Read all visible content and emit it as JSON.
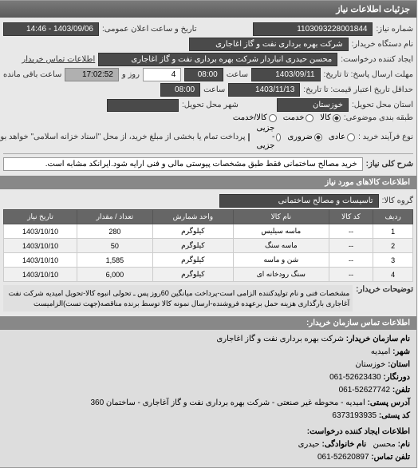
{
  "header": {
    "title": "جزئیات اطلاعات نیاز"
  },
  "info": {
    "request_no_label": "شماره نیاز:",
    "request_no": "1103093228001844",
    "announce_label": "تاریخ و ساعت اعلان عمومی:",
    "announce_value": "1403/09/06 - 14:46",
    "buyer_org_label": "نام دستگاه خریدار:",
    "buyer_org": "شرکت بهره برداری نفت و گاز اغاجاری",
    "creator_label": "ایجاد کننده درخواست:",
    "creator": "محسن حیدری انباردار شرکت بهره برداری نفت و گاز اغاجاری",
    "buyer_contact_label": "اطلاعات تماس خریدار",
    "deadline_label": "مهلت ارسال پاسخ: تا تاریخ:",
    "deadline_date": "1403/09/11",
    "time_label": "ساعت",
    "deadline_time": "08:00",
    "days_label": "روز و",
    "days_value": "4",
    "remaining_label": "ساعت باقی مانده",
    "remaining_time": "17:02:52",
    "validity_label": "حداقل تاریخ اعتبار قیمت: تا تاریخ:",
    "validity_date": "1403/11/13",
    "validity_time": "08:00",
    "delivery_province_label": "استان محل تحویل:",
    "delivery_province": "خوزستان",
    "delivery_city_label": "شهر محل تحویل:",
    "packaging_label": "طبقه بندی موضوعی:",
    "pkg_opt1": "کالا",
    "pkg_opt2": "خدمت",
    "pkg_opt3": "کالا/خدمت",
    "process_label": "نوع فرآیند خرید :",
    "proc_opt1": "عادی",
    "proc_opt2": "ضروری",
    "proc_opt3": "جزیی - جزیی",
    "payment_note": "پرداخت تمام یا بخشی از مبلغ خرید، از محل \"اسناد خزانه اسلامی\" خواهد بود.",
    "need_desc_label": "شرح کلی نیاز:",
    "need_desc": "خرید مصالح ساختمانی فقط طبق مشخصات پیوستی مالی و فنی ارایه شود.ایرانکد مشابه است."
  },
  "items": {
    "header": "اطلاعات کالاهای مورد نیاز",
    "group_label": "گروه کالا:",
    "group_value": "تاسیسات و مصالح ساختمانی",
    "columns": [
      "ردیف",
      "کد کالا",
      "نام کالا",
      "واحد شمارش",
      "تعداد / مقدار",
      "تاریخ نیاز"
    ],
    "rows": [
      [
        "1",
        "--",
        "ماسه سیلیس",
        "کیلوگرم",
        "280",
        "1403/10/10"
      ],
      [
        "2",
        "--",
        "ماسه سنگ",
        "کیلوگرم",
        "50",
        "1403/10/10"
      ],
      [
        "3",
        "--",
        "شن و ماسه",
        "کیلوگرم",
        "1,585",
        "1403/10/10"
      ],
      [
        "4",
        "--",
        "سنگ رودخانه ای",
        "کیلوگرم",
        "6,000",
        "1403/10/10"
      ]
    ],
    "notes_label": "توضیحات خریدار:",
    "notes": "مشخصات فنی و نام تولیدکننده الزامی است-پرداخت میانگین 60روز پس ـ تحولی انبوه کالا-تحویل امیدیه شرکت نفت آغاجاری بارگذاری هزینه حمل برعهده فروشنده-ارسال نمونه کالا توسط برنده مناقصه(جهت تست)الزامیست"
  },
  "contact": {
    "header": "اطلاعات تماس سازمان خریدار:",
    "org_label": "نام سازمان خریدار:",
    "org": "شرکت بهره برداری نفت و گاز اغاجاری",
    "city_label": "شهر:",
    "city": "امیدیه",
    "province_label": "استان:",
    "province": "خوزستان",
    "phone_label": "دورنگار:",
    "phone": "52623430-061",
    "tel_label": "تلفن:",
    "tel": "52627742-061",
    "address_label": "آدرس پستی:",
    "address": "امیدیه - محوطه غیر صنعتی - شرکت بهره برداری نفت و گاز آغاجاری - ساختمان 360",
    "postcode_label": "کد پستی:",
    "postcode": "6373193935",
    "creator_header": "اطلاعات ایجاد کننده درخواست:",
    "name_label": "نام:",
    "name": "محسن",
    "family_label": "نام خانوادگی:",
    "family": "حیدری",
    "contact_tel_label": "تلفن تماس:",
    "contact_tel": "52620897-061"
  },
  "styles": {
    "header_bg": "#6a6a6a",
    "field_dark_bg": "#4a4a4a",
    "field_gray_bg": "#b0b0b0"
  }
}
